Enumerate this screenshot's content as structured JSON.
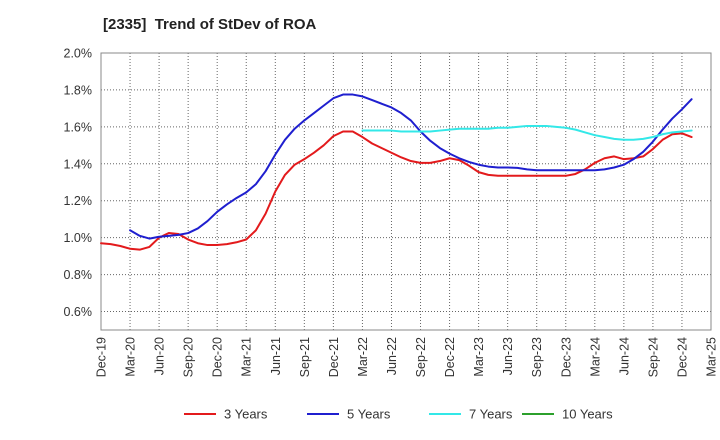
{
  "chart_data": {
    "type": "line",
    "title": "[2335]  Trend of StDev of ROA",
    "xlabel": "",
    "ylabel": "",
    "ylim": [
      0.5,
      2.0
    ],
    "x_ticks": [
      "Dec-19",
      "Mar-20",
      "Jun-20",
      "Sep-20",
      "Dec-20",
      "Mar-21",
      "Jun-21",
      "Sep-21",
      "Dec-21",
      "Mar-22",
      "Jun-22",
      "Sep-22",
      "Dec-22",
      "Mar-23",
      "Jun-23",
      "Sep-23",
      "Dec-23",
      "Mar-24",
      "Jun-24",
      "Sep-24",
      "Dec-24",
      "Mar-25"
    ],
    "y_ticks": [
      {
        "value": 0.6,
        "label": "0.6%"
      },
      {
        "value": 0.8,
        "label": "0.8%"
      },
      {
        "value": 1.0,
        "label": "1.0%"
      },
      {
        "value": 1.2,
        "label": "1.2%"
      },
      {
        "value": 1.4,
        "label": "1.4%"
      },
      {
        "value": 1.6,
        "label": "1.6%"
      },
      {
        "value": 1.8,
        "label": "1.8%"
      },
      {
        "value": 2.0,
        "label": "2.0%"
      }
    ],
    "grid": true,
    "legend_position": "bottom",
    "series": [
      {
        "name": "3 Years",
        "color": "#e31a1c",
        "points": [
          [
            "Dec-19",
            0.97
          ],
          [
            "Jan-20",
            0.965
          ],
          [
            "Feb-20",
            0.955
          ],
          [
            "Mar-20",
            0.94
          ],
          [
            "Apr-20",
            0.935
          ],
          [
            "May-20",
            0.95
          ],
          [
            "Jun-20",
            1.0
          ],
          [
            "Jul-20",
            1.025
          ],
          [
            "Aug-20",
            1.02
          ],
          [
            "Sep-20",
            0.99
          ],
          [
            "Oct-20",
            0.97
          ],
          [
            "Nov-20",
            0.96
          ],
          [
            "Dec-20",
            0.96
          ],
          [
            "Jan-21",
            0.965
          ],
          [
            "Feb-21",
            0.975
          ],
          [
            "Mar-21",
            0.99
          ],
          [
            "Apr-21",
            1.04
          ],
          [
            "May-21",
            1.13
          ],
          [
            "Jun-21",
            1.25
          ],
          [
            "Jul-21",
            1.34
          ],
          [
            "Aug-21",
            1.395
          ],
          [
            "Sep-21",
            1.425
          ],
          [
            "Oct-21",
            1.46
          ],
          [
            "Nov-21",
            1.5
          ],
          [
            "Dec-21",
            1.55
          ],
          [
            "Jan-22",
            1.575
          ],
          [
            "Feb-22",
            1.575
          ],
          [
            "Mar-22",
            1.545
          ],
          [
            "Apr-22",
            1.51
          ],
          [
            "May-22",
            1.485
          ],
          [
            "Jun-22",
            1.46
          ],
          [
            "Jul-22",
            1.435
          ],
          [
            "Aug-22",
            1.415
          ],
          [
            "Sep-22",
            1.405
          ],
          [
            "Oct-22",
            1.405
          ],
          [
            "Nov-22",
            1.415
          ],
          [
            "Dec-22",
            1.43
          ],
          [
            "Jan-23",
            1.42
          ],
          [
            "Feb-23",
            1.39
          ],
          [
            "Mar-23",
            1.355
          ],
          [
            "Apr-23",
            1.34
          ],
          [
            "May-23",
            1.335
          ],
          [
            "Jun-23",
            1.335
          ],
          [
            "Jul-23",
            1.335
          ],
          [
            "Aug-23",
            1.335
          ],
          [
            "Sep-23",
            1.335
          ],
          [
            "Oct-23",
            1.335
          ],
          [
            "Nov-23",
            1.335
          ],
          [
            "Dec-23",
            1.335
          ],
          [
            "Jan-24",
            1.345
          ],
          [
            "Feb-24",
            1.37
          ],
          [
            "Mar-24",
            1.405
          ],
          [
            "Apr-24",
            1.43
          ],
          [
            "May-24",
            1.44
          ],
          [
            "Jun-24",
            1.425
          ],
          [
            "Jul-24",
            1.43
          ],
          [
            "Aug-24",
            1.44
          ],
          [
            "Sep-24",
            1.48
          ],
          [
            "Oct-24",
            1.53
          ],
          [
            "Nov-24",
            1.56
          ],
          [
            "Dec-24",
            1.565
          ],
          [
            "Jan-25",
            1.545
          ]
        ]
      },
      {
        "name": "5 Years",
        "color": "#1f1fcf",
        "points": [
          [
            "Mar-20",
            1.04
          ],
          [
            "Apr-20",
            1.01
          ],
          [
            "May-20",
            0.995
          ],
          [
            "Jun-20",
            1.005
          ],
          [
            "Jul-20",
            1.01
          ],
          [
            "Aug-20",
            1.015
          ],
          [
            "Sep-20",
            1.025
          ],
          [
            "Oct-20",
            1.05
          ],
          [
            "Nov-20",
            1.09
          ],
          [
            "Dec-20",
            1.14
          ],
          [
            "Jan-21",
            1.18
          ],
          [
            "Feb-21",
            1.215
          ],
          [
            "Mar-21",
            1.245
          ],
          [
            "Apr-21",
            1.29
          ],
          [
            "May-21",
            1.36
          ],
          [
            "Jun-21",
            1.45
          ],
          [
            "Jul-21",
            1.53
          ],
          [
            "Aug-21",
            1.59
          ],
          [
            "Sep-21",
            1.635
          ],
          [
            "Oct-21",
            1.675
          ],
          [
            "Nov-21",
            1.715
          ],
          [
            "Dec-21",
            1.755
          ],
          [
            "Jan-22",
            1.775
          ],
          [
            "Feb-22",
            1.775
          ],
          [
            "Mar-22",
            1.765
          ],
          [
            "Apr-22",
            1.745
          ],
          [
            "May-22",
            1.725
          ],
          [
            "Jun-22",
            1.705
          ],
          [
            "Jul-22",
            1.675
          ],
          [
            "Aug-22",
            1.635
          ],
          [
            "Sep-22",
            1.575
          ],
          [
            "Oct-22",
            1.525
          ],
          [
            "Nov-22",
            1.485
          ],
          [
            "Dec-22",
            1.455
          ],
          [
            "Jan-23",
            1.43
          ],
          [
            "Feb-23",
            1.41
          ],
          [
            "Mar-23",
            1.395
          ],
          [
            "Apr-23",
            1.385
          ],
          [
            "May-23",
            1.38
          ],
          [
            "Jun-23",
            1.38
          ],
          [
            "Jul-23",
            1.378
          ],
          [
            "Aug-23",
            1.37
          ],
          [
            "Sep-23",
            1.365
          ],
          [
            "Oct-23",
            1.365
          ],
          [
            "Nov-23",
            1.365
          ],
          [
            "Dec-23",
            1.365
          ],
          [
            "Jan-24",
            1.365
          ],
          [
            "Feb-24",
            1.365
          ],
          [
            "Mar-24",
            1.365
          ],
          [
            "Apr-24",
            1.37
          ],
          [
            "May-24",
            1.38
          ],
          [
            "Jun-24",
            1.395
          ],
          [
            "Jul-24",
            1.425
          ],
          [
            "Aug-24",
            1.465
          ],
          [
            "Sep-24",
            1.52
          ],
          [
            "Oct-24",
            1.585
          ],
          [
            "Nov-24",
            1.645
          ],
          [
            "Dec-24",
            1.695
          ],
          [
            "Jan-25",
            1.75
          ]
        ]
      },
      {
        "name": "7 Years",
        "color": "#33e8e8",
        "points": [
          [
            "Mar-22",
            1.58
          ],
          [
            "Apr-22",
            1.58
          ],
          [
            "May-22",
            1.58
          ],
          [
            "Jun-22",
            1.58
          ],
          [
            "Jul-22",
            1.575
          ],
          [
            "Aug-22",
            1.575
          ],
          [
            "Sep-22",
            1.575
          ],
          [
            "Oct-22",
            1.575
          ],
          [
            "Nov-22",
            1.58
          ],
          [
            "Dec-22",
            1.585
          ],
          [
            "Jan-23",
            1.59
          ],
          [
            "Feb-23",
            1.59
          ],
          [
            "Mar-23",
            1.59
          ],
          [
            "Apr-23",
            1.59
          ],
          [
            "May-23",
            1.595
          ],
          [
            "Jun-23",
            1.595
          ],
          [
            "Jul-23",
            1.6
          ],
          [
            "Aug-23",
            1.605
          ],
          [
            "Sep-23",
            1.605
          ],
          [
            "Oct-23",
            1.605
          ],
          [
            "Nov-23",
            1.6
          ],
          [
            "Dec-23",
            1.595
          ],
          [
            "Jan-24",
            1.585
          ],
          [
            "Feb-24",
            1.57
          ],
          [
            "Mar-24",
            1.555
          ],
          [
            "Apr-24",
            1.545
          ],
          [
            "May-24",
            1.535
          ],
          [
            "Jun-24",
            1.53
          ],
          [
            "Jul-24",
            1.53
          ],
          [
            "Aug-24",
            1.535
          ],
          [
            "Sep-24",
            1.545
          ],
          [
            "Oct-24",
            1.56
          ],
          [
            "Nov-24",
            1.57
          ],
          [
            "Dec-24",
            1.575
          ],
          [
            "Jan-25",
            1.58
          ]
        ]
      },
      {
        "name": "10 Years",
        "color": "#2ca02c",
        "points": []
      }
    ]
  }
}
